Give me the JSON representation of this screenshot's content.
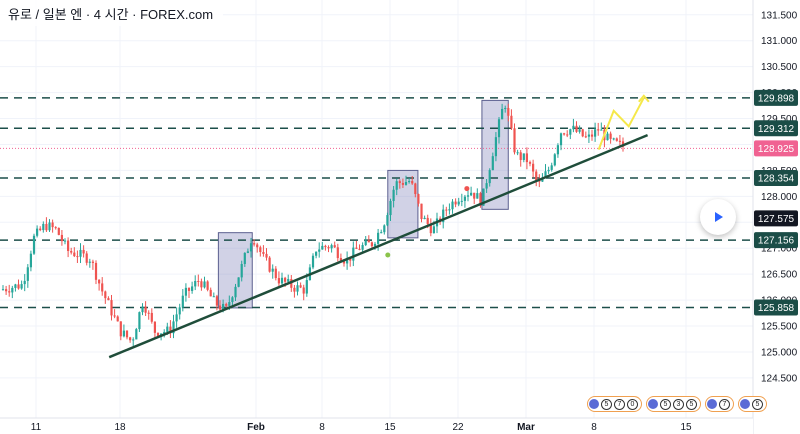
{
  "header": {
    "title": "유로 / 일본 엔 · 4 시간 · FOREX.com"
  },
  "chart_data": {
    "type": "candlestick",
    "title": "유로 / 일본 엔 · 4 시간 · FOREX.com",
    "xlabel": "",
    "ylabel": "",
    "ylim": [
      124.2,
      131.65
    ],
    "x_ticks": [
      "11",
      "18",
      "Feb",
      "8",
      "15",
      "22",
      "Mar",
      "8",
      "15"
    ],
    "y_ticks": [
      "131.500",
      "131.000",
      "130.500",
      "130.000",
      "129.500",
      "129.000",
      "128.500",
      "128.000",
      "127.500",
      "127.000",
      "126.500",
      "126.000",
      "125.500",
      "125.000",
      "124.500"
    ],
    "price_path": [
      {
        "x": 0,
        "y": 126.2
      },
      {
        "x": 0.03,
        "y": 126.3
      },
      {
        "x": 0.045,
        "y": 127.2
      },
      {
        "x": 0.06,
        "y": 127.45
      },
      {
        "x": 0.075,
        "y": 127.35
      },
      {
        "x": 0.09,
        "y": 126.95
      },
      {
        "x": 0.12,
        "y": 126.8
      },
      {
        "x": 0.135,
        "y": 126.2
      },
      {
        "x": 0.16,
        "y": 125.4
      },
      {
        "x": 0.175,
        "y": 125.2
      },
      {
        "x": 0.19,
        "y": 126.0
      },
      {
        "x": 0.205,
        "y": 125.4
      },
      {
        "x": 0.225,
        "y": 125.4
      },
      {
        "x": 0.245,
        "y": 126.1
      },
      {
        "x": 0.265,
        "y": 126.4
      },
      {
        "x": 0.285,
        "y": 125.95
      },
      {
        "x": 0.3,
        "y": 125.8
      },
      {
        "x": 0.32,
        "y": 126.6
      },
      {
        "x": 0.335,
        "y": 127.25
      },
      {
        "x": 0.35,
        "y": 126.8
      },
      {
        "x": 0.37,
        "y": 126.4
      },
      {
        "x": 0.39,
        "y": 126.25
      },
      {
        "x": 0.405,
        "y": 126.2
      },
      {
        "x": 0.42,
        "y": 127.0
      },
      {
        "x": 0.44,
        "y": 127.05
      },
      {
        "x": 0.46,
        "y": 126.75
      },
      {
        "x": 0.475,
        "y": 127.0
      },
      {
        "x": 0.495,
        "y": 127.1
      },
      {
        "x": 0.51,
        "y": 127.5
      },
      {
        "x": 0.525,
        "y": 128.25
      },
      {
        "x": 0.545,
        "y": 128.3
      },
      {
        "x": 0.56,
        "y": 127.6
      },
      {
        "x": 0.575,
        "y": 127.35
      },
      {
        "x": 0.595,
        "y": 127.8
      },
      {
        "x": 0.61,
        "y": 128.0
      },
      {
        "x": 0.625,
        "y": 128.1
      },
      {
        "x": 0.64,
        "y": 127.9
      },
      {
        "x": 0.655,
        "y": 128.9
      },
      {
        "x": 0.67,
        "y": 129.85
      },
      {
        "x": 0.685,
        "y": 128.8
      },
      {
        "x": 0.7,
        "y": 128.7
      },
      {
        "x": 0.715,
        "y": 128.2
      },
      {
        "x": 0.73,
        "y": 128.55
      },
      {
        "x": 0.745,
        "y": 129.25
      },
      {
        "x": 0.76,
        "y": 129.3
      },
      {
        "x": 0.78,
        "y": 129.1
      },
      {
        "x": 0.795,
        "y": 129.3
      },
      {
        "x": 0.81,
        "y": 129.05
      },
      {
        "x": 0.83,
        "y": 128.95
      }
    ],
    "price_levels": [
      {
        "label": "129.898",
        "value": 129.898,
        "style": "dashed"
      },
      {
        "label": "129.312",
        "value": 129.312,
        "style": "dashed"
      },
      {
        "label": "128.354",
        "value": 128.354,
        "style": "dashed"
      },
      {
        "label": "127.156",
        "value": 127.156,
        "style": "dashed"
      },
      {
        "label": "125.858",
        "value": 125.858,
        "style": "dashed"
      }
    ],
    "current_price": {
      "label": "128.925",
      "value": 128.925
    },
    "crosshair_price": {
      "label": "127.575",
      "value": 127.575
    },
    "trendline": {
      "from": {
        "x": 0.145,
        "y": 124.9
      },
      "to": {
        "x": 0.86,
        "y": 129.18
      }
    },
    "highlight_boxes": [
      {
        "x0": 0.29,
        "x1": 0.335,
        "y0": 125.85,
        "y1": 127.3
      },
      {
        "x0": 0.515,
        "x1": 0.555,
        "y0": 127.2,
        "y1": 128.5
      },
      {
        "x0": 0.64,
        "x1": 0.675,
        "y0": 127.75,
        "y1": 129.85
      }
    ],
    "projection": [
      {
        "x": 0.795,
        "y": 128.9
      },
      {
        "x": 0.815,
        "y": 129.65
      },
      {
        "x": 0.835,
        "y": 129.35
      },
      {
        "x": 0.855,
        "y": 129.9
      }
    ],
    "markers": [
      {
        "x": 0.515,
        "y": 126.87,
        "color": "#8bc34a"
      },
      {
        "x": 0.62,
        "y": 128.15,
        "color": "#ef5350"
      }
    ]
  },
  "events": {
    "counts": [
      "5",
      "7",
      "0",
      "5",
      "3",
      "5",
      "7",
      "5"
    ]
  },
  "colors": {
    "up": "#26a69a",
    "down": "#ef5350",
    "level": "#1c4f4a",
    "label_bg": "#1b4d47",
    "current_bg": "#f06292",
    "crosshair_bg": "#131722",
    "box_fill": "#7b7fb6",
    "trendline": "#1f4d3a",
    "projection": "#f5e84a"
  }
}
